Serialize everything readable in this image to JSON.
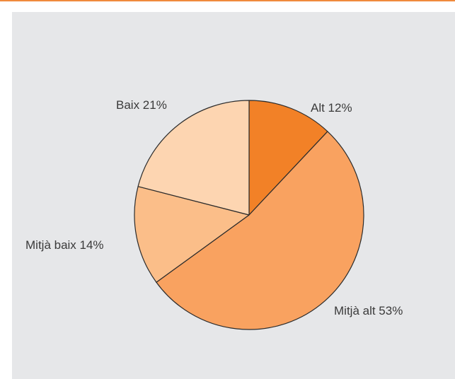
{
  "chart_data": {
    "type": "pie",
    "title": "",
    "labels": [
      "Alt",
      "Mitjà alt",
      "Mitjà baix",
      "Baix"
    ],
    "values": [
      12,
      53,
      14,
      21
    ],
    "label_text": [
      "Alt 12%",
      "Mitjà alt 53%",
      "Mitjà baix 14%",
      "Baix 21%"
    ],
    "colors": [
      "#f28127",
      "#f9a260",
      "#fbbe89",
      "#fdd5b1"
    ],
    "start": "top",
    "direction": "clockwise",
    "legend": "none"
  },
  "colors": {
    "accent_rule": "#f08a3c",
    "panel_background": "#e6e7e9",
    "slice_stroke": "#2b2b2b",
    "label_text": "#3a3a3a"
  }
}
